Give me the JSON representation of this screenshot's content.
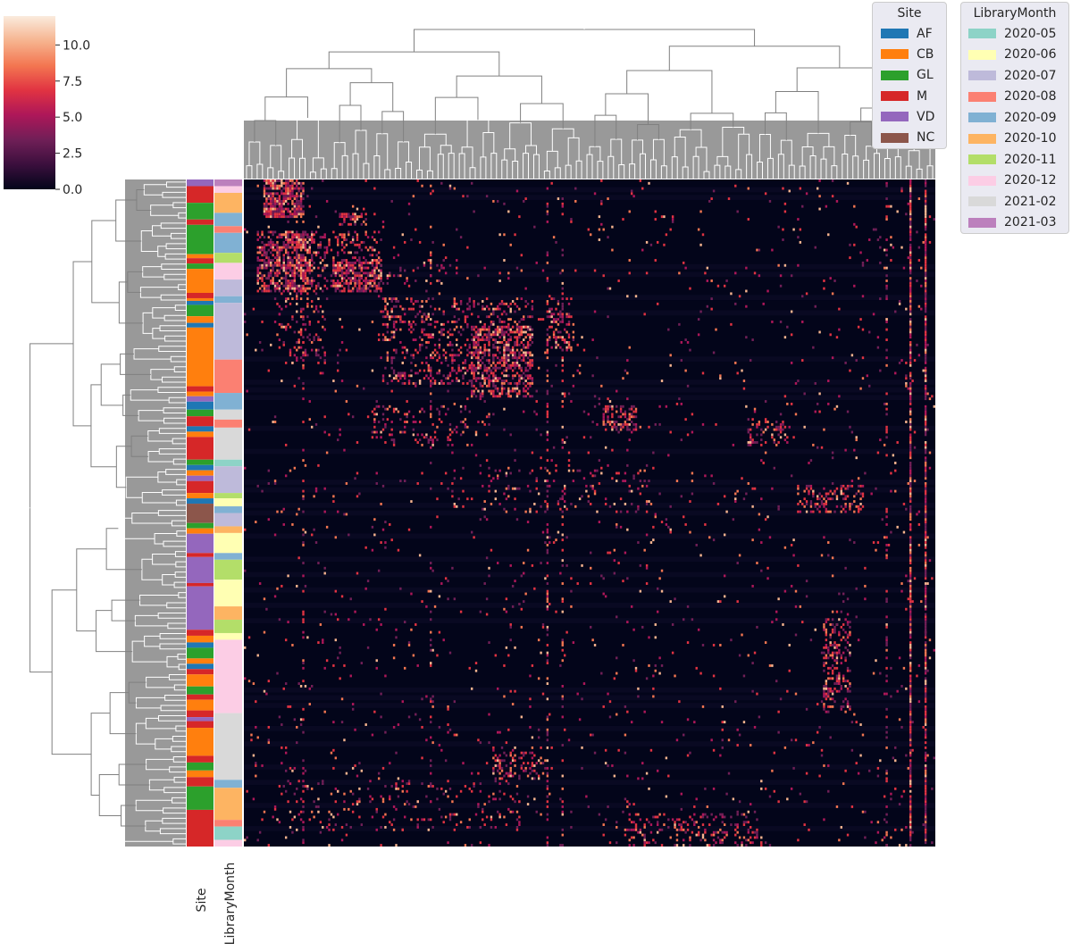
{
  "chart_data": {
    "type": "heatmap",
    "title": "",
    "colorbar": {
      "ticks": [
        0.0,
        2.5,
        5.0,
        7.5,
        10.0
      ],
      "tick_labels": [
        "0.0",
        "2.5",
        "5.0",
        "7.5",
        "10.0"
      ],
      "range": [
        0,
        12
      ],
      "colormap": "rocket",
      "stops": [
        "#03051a",
        "#3b0f3d",
        "#701f57",
        "#ad1759",
        "#e13342",
        "#f37651",
        "#f6b48f",
        "#faebdd"
      ]
    },
    "row_color_axes": [
      "Site",
      "LibraryMonth"
    ],
    "site_legend": {
      "title": "Site",
      "entries": [
        {
          "label": "AF",
          "color": "#1f77b4"
        },
        {
          "label": "CB",
          "color": "#ff7f0e"
        },
        {
          "label": "GL",
          "color": "#2ca02c"
        },
        {
          "label": "M",
          "color": "#d62728"
        },
        {
          "label": "VD",
          "color": "#9467bd"
        },
        {
          "label": "NC",
          "color": "#8c564b"
        }
      ]
    },
    "month_legend": {
      "title": "LibraryMonth",
      "entries": [
        {
          "label": "2020-05",
          "color": "#8dd3c7"
        },
        {
          "label": "2020-06",
          "color": "#ffffb3"
        },
        {
          "label": "2020-07",
          "color": "#bebada"
        },
        {
          "label": "2020-08",
          "color": "#fb8072"
        },
        {
          "label": "2020-09",
          "color": "#80b1d3"
        },
        {
          "label": "2020-10",
          "color": "#fdb462"
        },
        {
          "label": "2020-11",
          "color": "#b3de69"
        },
        {
          "label": "2020-12",
          "color": "#fccde5"
        },
        {
          "label": "2021-02",
          "color": "#d9d9d9"
        },
        {
          "label": "2021-03",
          "color": "#bc80bd"
        }
      ]
    },
    "site_segments": [
      [
        "VD",
        0.01
      ],
      [
        "M",
        0.035
      ],
      [
        "GL",
        0.06
      ],
      [
        "M",
        0.068
      ],
      [
        "GL",
        0.112
      ],
      [
        "CB",
        0.118
      ],
      [
        "M",
        0.126
      ],
      [
        "GL",
        0.134
      ],
      [
        "CB",
        0.17
      ],
      [
        "M",
        0.178
      ],
      [
        "CB",
        0.182
      ],
      [
        "AF",
        0.188
      ],
      [
        "GL",
        0.205
      ],
      [
        "CB",
        0.215
      ],
      [
        "AF",
        0.222
      ],
      [
        "CB",
        0.31
      ],
      [
        "M",
        0.318
      ],
      [
        "CB",
        0.325
      ],
      [
        "VD",
        0.333
      ],
      [
        "AF",
        0.345
      ],
      [
        "GL",
        0.355
      ],
      [
        "M",
        0.37
      ],
      [
        "AF",
        0.378
      ],
      [
        "CB",
        0.386
      ],
      [
        "M",
        0.42
      ],
      [
        "GL",
        0.428
      ],
      [
        "AF",
        0.436
      ],
      [
        "CB",
        0.444
      ],
      [
        "VD",
        0.452
      ],
      [
        "M",
        0.47
      ],
      [
        "CB",
        0.478
      ],
      [
        "AF",
        0.486
      ],
      [
        "NC",
        0.515
      ],
      [
        "GL",
        0.523
      ],
      [
        "CB",
        0.531
      ],
      [
        "VD",
        0.56
      ],
      [
        "M",
        0.566
      ],
      [
        "VD",
        0.605
      ],
      [
        "M",
        0.61
      ],
      [
        "VD",
        0.675
      ],
      [
        "M",
        0.684
      ],
      [
        "CB",
        0.694
      ],
      [
        "AF",
        0.702
      ],
      [
        "GL",
        0.718
      ],
      [
        "CB",
        0.726
      ],
      [
        "AF",
        0.734
      ],
      [
        "M",
        0.742
      ],
      [
        "CB",
        0.76
      ],
      [
        "GL",
        0.772
      ],
      [
        "M",
        0.78
      ],
      [
        "CB",
        0.796
      ],
      [
        "M",
        0.806
      ],
      [
        "VD",
        0.812
      ],
      [
        "M",
        0.822
      ],
      [
        "CB",
        0.864
      ],
      [
        "M",
        0.874
      ],
      [
        "GL",
        0.886
      ],
      [
        "CB",
        0.896
      ],
      [
        "M",
        0.91
      ],
      [
        "GL",
        0.945
      ],
      [
        "M",
        1.0
      ]
    ],
    "month_segments": [
      [
        "2021-03",
        0.01
      ],
      [
        "2020-12",
        0.02
      ],
      [
        "2020-10",
        0.05
      ],
      [
        "2020-09",
        0.07
      ],
      [
        "2020-08",
        0.08
      ],
      [
        "2020-09",
        0.11
      ],
      [
        "2020-11",
        0.125
      ],
      [
        "2020-12",
        0.15
      ],
      [
        "2020-07",
        0.175
      ],
      [
        "2020-09",
        0.185
      ],
      [
        "2020-07",
        0.27
      ],
      [
        "2020-08",
        0.32
      ],
      [
        "2020-09",
        0.345
      ],
      [
        "2021-02",
        0.36
      ],
      [
        "2020-08",
        0.372
      ],
      [
        "2021-02",
        0.42
      ],
      [
        "2020-05",
        0.43
      ],
      [
        "2020-07",
        0.47
      ],
      [
        "2020-11",
        0.478
      ],
      [
        "2020-06",
        0.49
      ],
      [
        "2020-09",
        0.5
      ],
      [
        "2020-07",
        0.52
      ],
      [
        "2020-10",
        0.53
      ],
      [
        "2020-06",
        0.56
      ],
      [
        "2020-09",
        0.57
      ],
      [
        "2020-11",
        0.6
      ],
      [
        "2020-06",
        0.64
      ],
      [
        "2020-10",
        0.66
      ],
      [
        "2020-11",
        0.68
      ],
      [
        "2020-06",
        0.69
      ],
      [
        "2020-12",
        0.8
      ],
      [
        "2021-02",
        0.9
      ],
      [
        "2020-09",
        0.912
      ],
      [
        "2020-10",
        0.96
      ],
      [
        "2020-08",
        0.97
      ],
      [
        "2020-05",
        0.99
      ],
      [
        "2020-12",
        1.0
      ]
    ],
    "n_rows": 260,
    "n_cols": 320
  }
}
